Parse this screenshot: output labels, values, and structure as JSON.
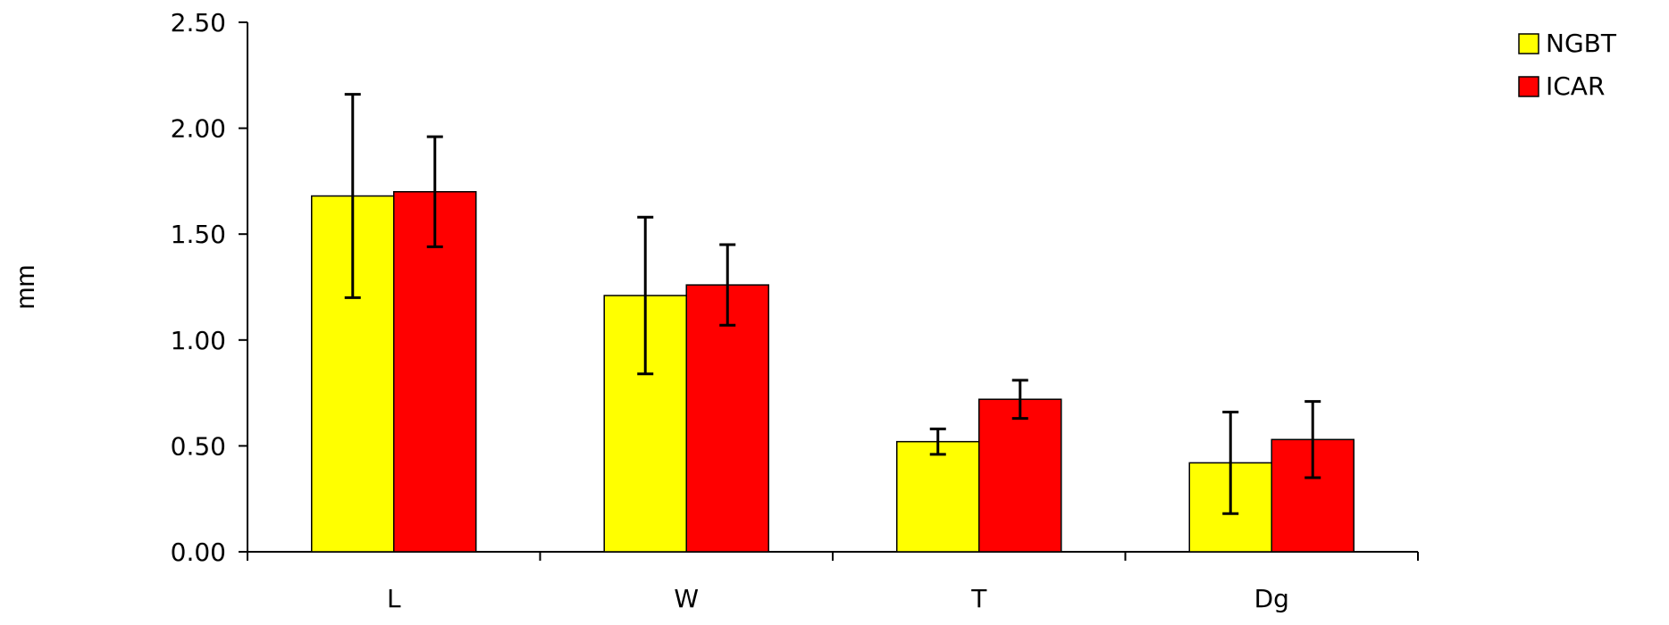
{
  "chart_data": {
    "type": "bar",
    "title": "",
    "xlabel": "",
    "ylabel": "mm",
    "ylim": [
      0,
      2.5
    ],
    "yticks": [
      "0.00",
      "0.50",
      "1.00",
      "1.50",
      "2.00",
      "2.50"
    ],
    "ytick_values": [
      0,
      0.5,
      1.0,
      1.5,
      2.0,
      2.5
    ],
    "categories": [
      "L",
      "W",
      "T",
      "Dg"
    ],
    "grid": false,
    "legend_position": "top-right",
    "series": [
      {
        "name": "NGBT",
        "color": "#FFFF00",
        "values": [
          1.68,
          1.21,
          0.52,
          0.42
        ],
        "errors": [
          0.48,
          0.37,
          0.06,
          0.24
        ]
      },
      {
        "name": "ICAR",
        "color": "#FF0000",
        "values": [
          1.7,
          1.26,
          0.72,
          0.53
        ],
        "errors": [
          0.26,
          0.19,
          0.09,
          0.18
        ]
      }
    ]
  }
}
